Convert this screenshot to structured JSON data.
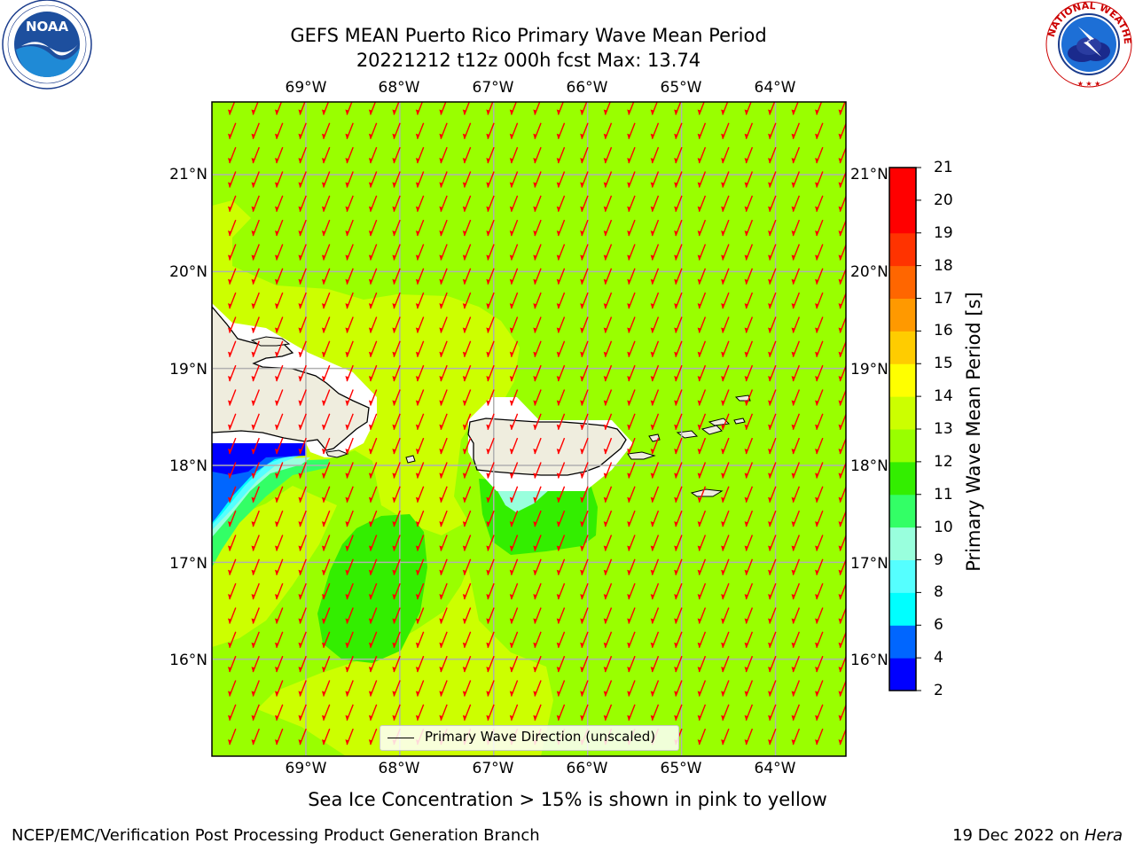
{
  "header": {
    "title_line1": "GEFS MEAN Puerto Rico Primary Wave Mean Period",
    "title_line2": "20221212 t12z 000h fcst   Max: 13.74"
  },
  "logos": {
    "left": {
      "icon": "noaa-logo",
      "text": "NOAA",
      "ring_text": "NATIONAL OCEANIC AND ATMOSPHERIC ADMINISTRATION · U.S. DEPARTMENT OF COMMERCE"
    },
    "right": {
      "icon": "nws-logo",
      "ring_text": "NATIONAL WEATHER SERVICE"
    }
  },
  "map": {
    "lon_ticks": [
      "69°W",
      "68°W",
      "67°W",
      "66°W",
      "65°W",
      "64°W"
    ],
    "lat_ticks": [
      "21°N",
      "20°N",
      "19°N",
      "18°N",
      "17°N",
      "16°N"
    ],
    "lon_range": [
      -70.0,
      -63.25
    ],
    "lat_range": [
      15.0,
      21.75
    ],
    "grid": true,
    "arrow_color": "#ff0000",
    "arrow_direction": "toward SSW",
    "background_field_color": "#99ff00",
    "land_color": "#efedde"
  },
  "colorbar": {
    "title": "Primary Wave Mean Period [s]",
    "levels": [
      "2",
      "4",
      "6",
      "8",
      "9",
      "10",
      "11",
      "12",
      "13",
      "14",
      "15",
      "16",
      "17",
      "18",
      "19",
      "20",
      "21"
    ],
    "colors": [
      "#0000ff",
      "#0066ff",
      "#00ffff",
      "#55ffff",
      "#99ffdd",
      "#33ff66",
      "#33ee00",
      "#99ff00",
      "#ccff00",
      "#ffff00",
      "#ffcc00",
      "#ff9900",
      "#ff6600",
      "#ff3300",
      "#ff0000"
    ]
  },
  "legend": {
    "label": "Primary Wave Direction (unscaled)"
  },
  "subtitle": "Sea Ice Concentration > 15% is shown in pink to yellow",
  "footer": {
    "left": "NCEP/EMC/Verification Post Processing Product Generation Branch",
    "right_prefix": "19 Dec 2022 on ",
    "right_host": "Hera"
  }
}
